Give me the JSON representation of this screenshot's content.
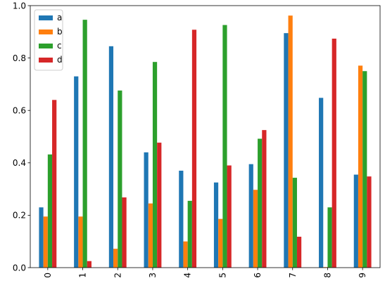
{
  "chart_data": {
    "type": "bar",
    "title": "",
    "xlabel": "",
    "ylabel": "",
    "categories": [
      "0",
      "1",
      "2",
      "3",
      "4",
      "5",
      "6",
      "7",
      "8",
      "9"
    ],
    "ylim": [
      0,
      1.0
    ],
    "yticks": [
      "0.0",
      "0.2",
      "0.4",
      "0.6",
      "0.8",
      "1.0"
    ],
    "grid": false,
    "legend_position": "top-left",
    "series": [
      {
        "name": "a",
        "color": "#1f77b4",
        "values": [
          0.23,
          0.73,
          0.845,
          0.44,
          0.37,
          0.325,
          0.395,
          0.895,
          0.648,
          0.355
        ]
      },
      {
        "name": "b",
        "color": "#ff7f0e",
        "values": [
          0.195,
          0.195,
          0.072,
          0.245,
          0.1,
          0.186,
          0.297,
          0.962,
          0.002,
          0.771
        ]
      },
      {
        "name": "c",
        "color": "#2ca02c",
        "values": [
          0.432,
          0.946,
          0.676,
          0.785,
          0.255,
          0.926,
          0.492,
          0.343,
          0.23,
          0.75
        ]
      },
      {
        "name": "d",
        "color": "#d62728",
        "values": [
          0.64,
          0.025,
          0.268,
          0.477,
          0.908,
          0.39,
          0.525,
          0.118,
          0.874,
          0.348
        ]
      }
    ]
  }
}
